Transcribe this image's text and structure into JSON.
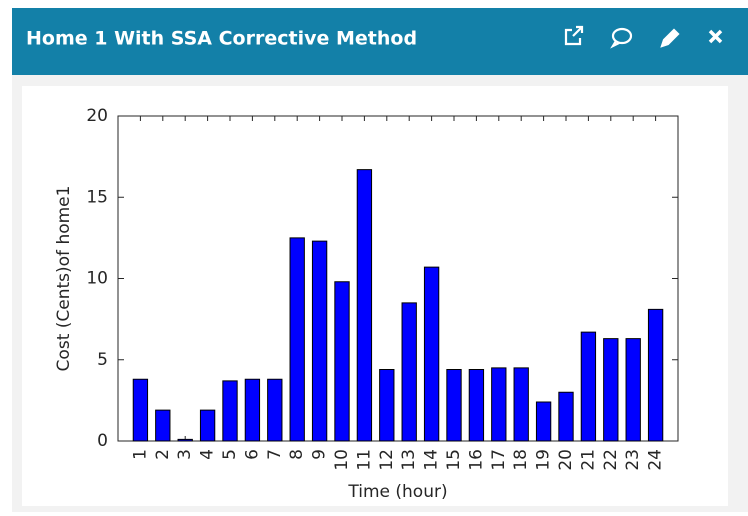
{
  "header": {
    "title": "Home 1 With SSA Corrective Method"
  },
  "chart_data": {
    "type": "bar",
    "xlabel": "Time (hour)",
    "ylabel": "Cost (Cents)of home1",
    "categories": [
      "1",
      "2",
      "3",
      "4",
      "5",
      "6",
      "7",
      "8",
      "9",
      "10",
      "11",
      "12",
      "13",
      "14",
      "15",
      "16",
      "17",
      "18",
      "19",
      "20",
      "21",
      "22",
      "23",
      "24"
    ],
    "values": [
      3.8,
      1.9,
      0.1,
      1.9,
      3.7,
      3.8,
      3.8,
      12.5,
      12.3,
      9.8,
      16.7,
      4.4,
      8.5,
      10.7,
      4.4,
      4.4,
      4.5,
      4.5,
      2.4,
      3.0,
      6.7,
      6.3,
      6.3,
      8.1
    ],
    "color": "#0000ff",
    "ylim": [
      0,
      20
    ],
    "yticks": [
      0,
      5,
      10,
      15,
      20
    ]
  }
}
